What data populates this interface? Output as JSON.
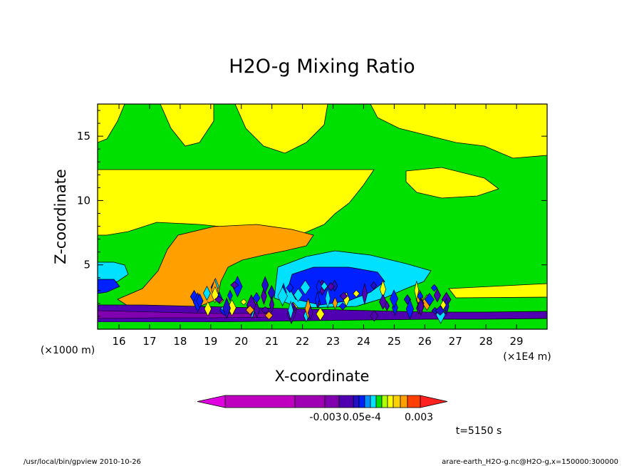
{
  "chart_data": {
    "type": "heatmap",
    "title": "H2O-g Mixing Ratio",
    "xlabel": "X-coordinate",
    "ylabel": "Z-coordinate",
    "x_unit_left": "(×1000 m)",
    "x_unit_right": "(×1E4 m)",
    "x_ticks": [
      "16",
      "17",
      "18",
      "19",
      "20",
      "21",
      "22",
      "23",
      "24",
      "25",
      "26",
      "27",
      "28",
      "29"
    ],
    "x_tick_values": [
      16,
      17,
      18,
      19,
      20,
      21,
      22,
      23,
      24,
      25,
      26,
      27,
      28,
      29
    ],
    "y_ticks": [
      "5",
      "10",
      "15"
    ],
    "y_tick_values": [
      5,
      10,
      15
    ],
    "xlim": [
      15.3,
      30.0
    ],
    "ylim": [
      0,
      17.5
    ],
    "colorbar_labels": [
      "-0.003",
      "0.003"
    ],
    "colorbar_overlap_label": "0.05e-4",
    "colorbar_colors": [
      "#c000c0",
      "#a000b4",
      "#8000b0",
      "#5000b0",
      "#2010c8",
      "#0020ff",
      "#0090ff",
      "#00e0ff",
      "#00e000",
      "#b0ff00",
      "#ffff00",
      "#ffd000",
      "#ffa000",
      "#ff4000"
    ],
    "colorbar_end_colors": [
      "#e000e0",
      "#ff2020"
    ],
    "regions": [
      {
        "name": "background",
        "color": "#00e000"
      },
      {
        "name": "upper-yellow",
        "color": "#ffff00"
      },
      {
        "name": "mid-orange",
        "color": "#ffa000"
      },
      {
        "name": "cyan",
        "color": "#00e0ff"
      },
      {
        "name": "blue",
        "color": "#0020ff"
      },
      {
        "name": "purple-boundary-layer",
        "color": "#5000b0"
      }
    ]
  },
  "annotations": {
    "time": "t=5150 s",
    "footer_left": "/usr/local/bin/gpview  2010-10-26",
    "footer_right": "arare-earth_H2O-g.nc@H2O-g,x=150000:300000"
  }
}
